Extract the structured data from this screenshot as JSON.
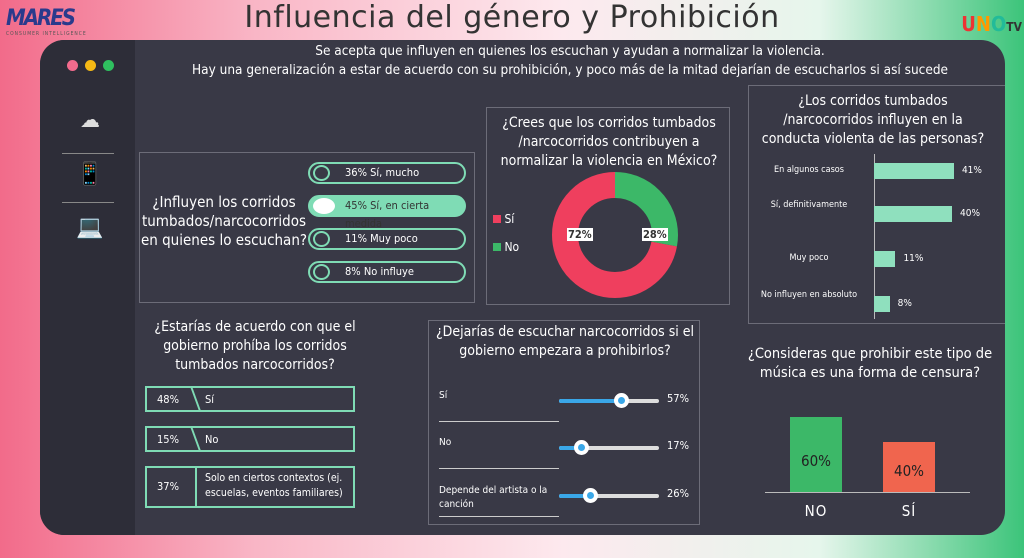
{
  "title": "Influencia del género y Prohibición",
  "logos": {
    "left": "MARES",
    "left_sub": "CONSUMER INTELLIGENCE",
    "right": "UNO TV"
  },
  "subtitle": [
    "Se acepta que influyen en quienes los escuchan y ayudan a normalizar la violencia.",
    "Hay una generalización a estar de acuerdo con su prohibición, y poco más de la mitad dejarían de escucharlos si así sucede"
  ],
  "colors": {
    "pink": "#ef3f5e",
    "green": "#3cb868",
    "mint": "#7fdcb5",
    "blue": "#3aa7e8",
    "orange": "#f0654e"
  },
  "q1": {
    "question": "¿Influyen los corridos tumbados/narcocorridos en quienes lo escuchan?",
    "options": [
      "36% Sí, mucho",
      "45% Sí, en cierta medida",
      "11% Muy poco",
      "8% No influye"
    ]
  },
  "q2": {
    "question": "¿Crees que los corridos tumbados /narcocorridos contribuyen a normalizar la violencia en México?",
    "legend": [
      "Sí",
      "No"
    ],
    "values": [
      72,
      28
    ],
    "labels": [
      "72%",
      "28%"
    ]
  },
  "q3": {
    "question": "¿Los corridos tumbados /narcocorridos influyen en la conducta violenta de las personas?",
    "items": [
      {
        "label": "En algunos casos",
        "value": 41,
        "text": "41%"
      },
      {
        "label": "Sí, definitivamente",
        "value": 40,
        "text": "40%"
      },
      {
        "label": "Muy poco",
        "value": 11,
        "text": "11%"
      },
      {
        "label": "No influyen en absoluto",
        "value": 8,
        "text": "8%"
      }
    ]
  },
  "q4": {
    "question": "¿Estarías de acuerdo con que el gobierno prohíba los corridos tumbados narcocorridos?",
    "options": [
      {
        "pct": "48%",
        "label": "Sí"
      },
      {
        "pct": "15%",
        "label": "No"
      },
      {
        "pct": "37%",
        "label": "Solo en ciertos contextos (ej. escuelas, eventos familiares)"
      }
    ]
  },
  "q5": {
    "question": "¿Dejarías de escuchar narcocorridos si el gobierno empezara a prohibirlos?",
    "items": [
      {
        "label": "Sí",
        "value": 57,
        "text": "57%"
      },
      {
        "label": "No",
        "value": 17,
        "text": "17%"
      },
      {
        "label": "Depende del artista o la canción",
        "value": 26,
        "text": "26%"
      }
    ]
  },
  "q6": {
    "question": "¿Consideras que prohibir este tipo de música es una forma de censura?",
    "bars": [
      {
        "label": "NO",
        "value": 60,
        "text": "60%"
      },
      {
        "label": "SÍ",
        "value": 40,
        "text": "40%"
      }
    ]
  }
}
